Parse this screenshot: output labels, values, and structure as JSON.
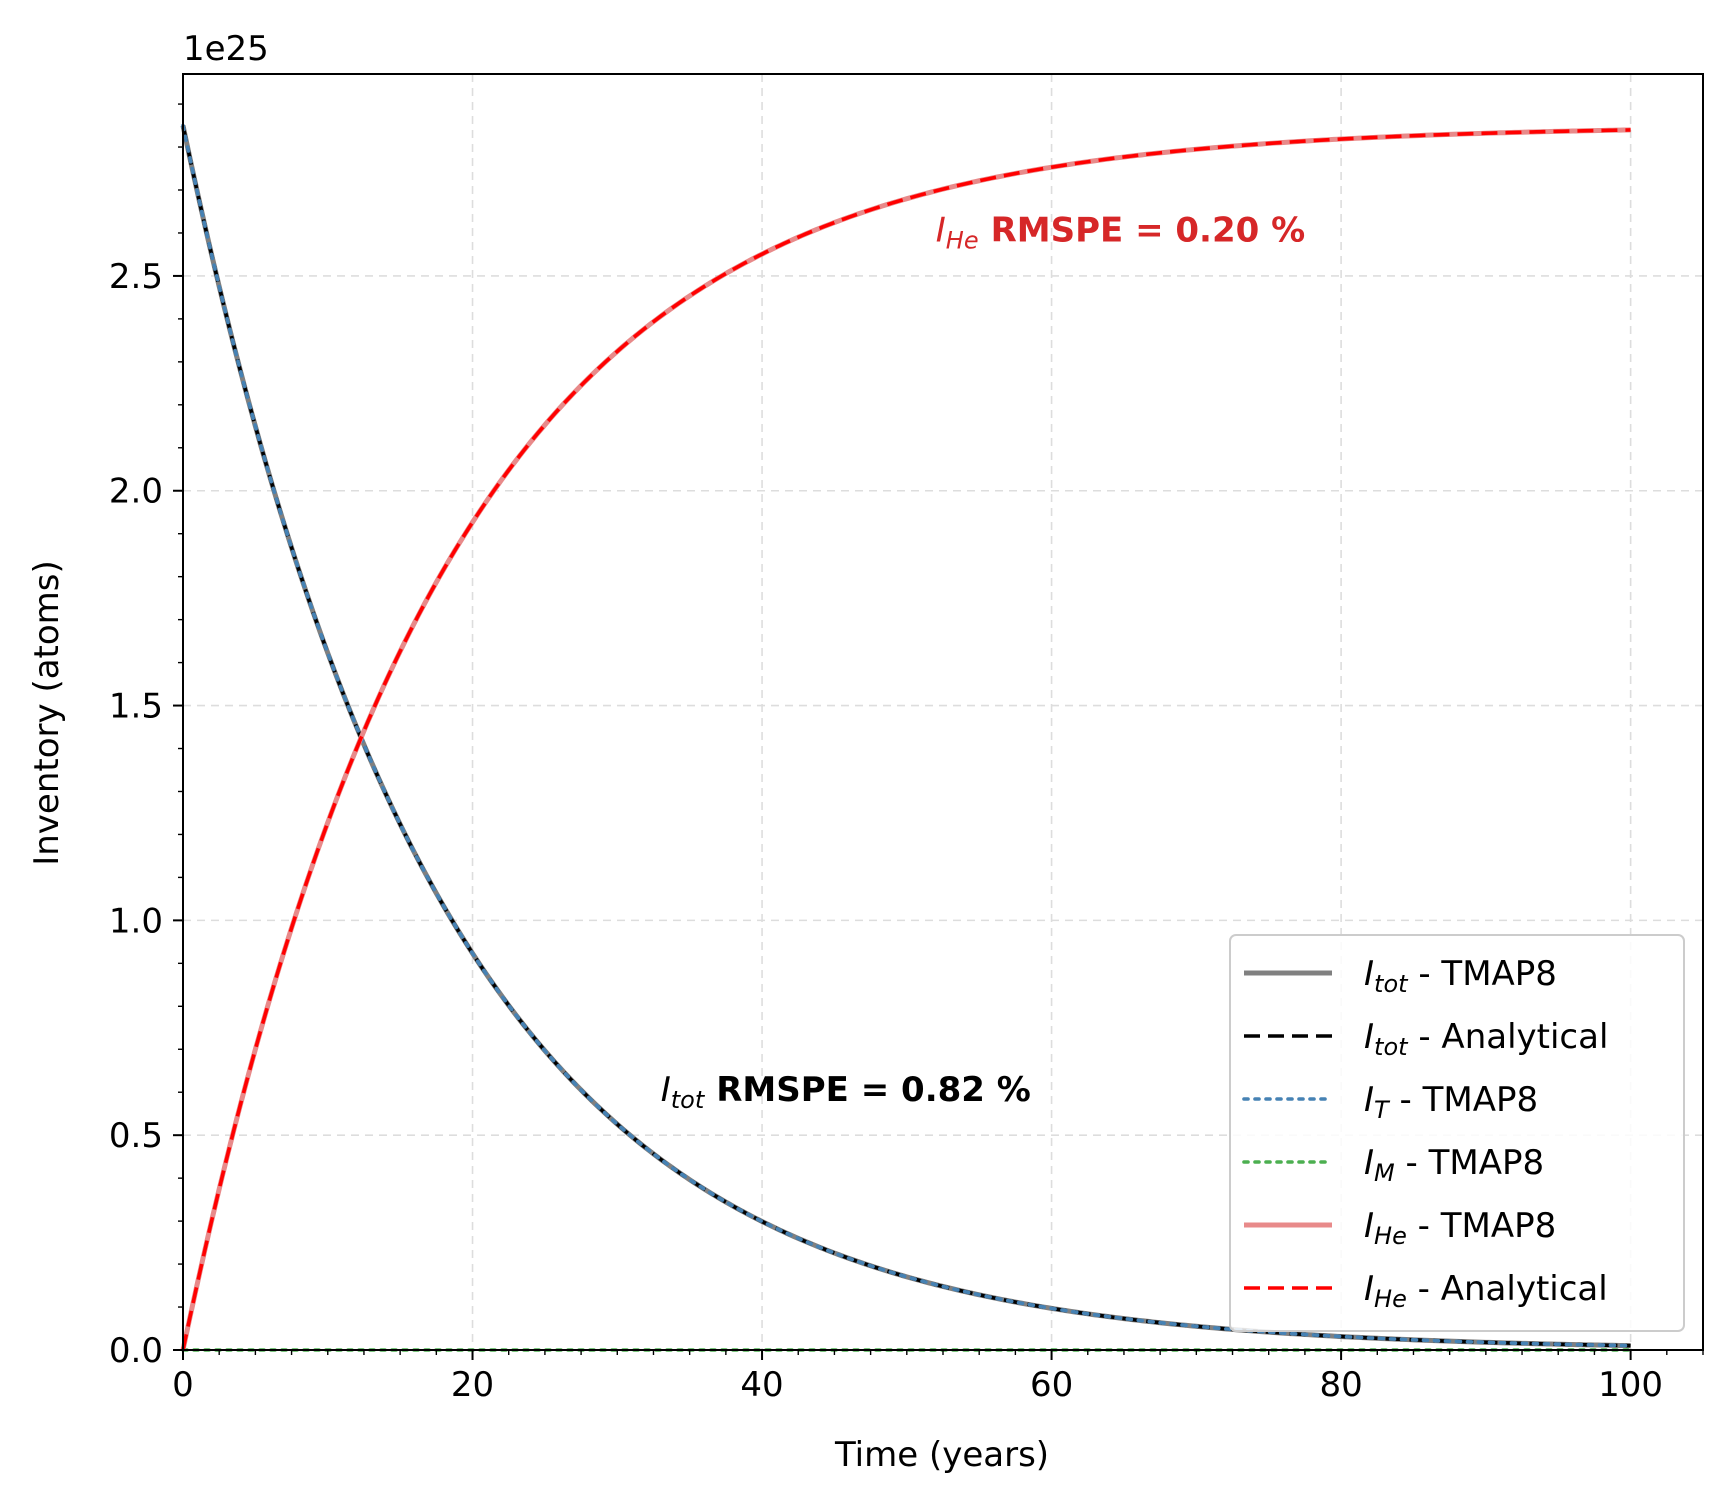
{
  "chart_data": {
    "type": "line",
    "offset_text": "1e25",
    "xlabel": "Time (years)",
    "ylabel": "Inventory (atoms)",
    "xlim": [
      0,
      105
    ],
    "ylim": [
      0,
      2.97
    ],
    "y_scale_factor": "1e25",
    "xticks": [
      "0",
      "20",
      "40",
      "60",
      "80",
      "100"
    ],
    "xtick_values": [
      0,
      20,
      40,
      60,
      80,
      100
    ],
    "yticks": [
      "0.0",
      "0.5",
      "1.0",
      "1.5",
      "2.0",
      "2.5"
    ],
    "ytick_values": [
      0,
      0.5,
      1.0,
      1.5,
      2.0,
      2.5
    ],
    "grid": true,
    "legend_position": "lower-right",
    "half_life_years": 12.3,
    "initial_inventory": 2.85,
    "series": [
      {
        "name": "tot",
        "suffix": " - TMAP8",
        "color": "#808080",
        "dash": "solid",
        "x": [
          0,
          5,
          10,
          15,
          20,
          25,
          30,
          40,
          50,
          60,
          70,
          80,
          90,
          100
        ],
        "y": [
          2.85,
          2.16,
          1.62,
          1.22,
          0.92,
          0.7,
          0.52,
          0.3,
          0.17,
          0.098,
          0.055,
          0.031,
          0.018,
          0.01
        ]
      },
      {
        "name": "tot",
        "suffix": " - Analytical",
        "color": "#000000",
        "dash": "dashed",
        "x": [
          0,
          5,
          10,
          15,
          20,
          25,
          30,
          40,
          50,
          60,
          70,
          80,
          90,
          100
        ],
        "y": [
          2.85,
          2.16,
          1.62,
          1.22,
          0.92,
          0.7,
          0.52,
          0.3,
          0.17,
          0.098,
          0.055,
          0.031,
          0.018,
          0.01
        ]
      },
      {
        "name": "T",
        "suffix": " - TMAP8",
        "color": "#4682b4",
        "dash": "dotted",
        "x": [
          0,
          5,
          10,
          15,
          20,
          25,
          30,
          40,
          50,
          60,
          70,
          80,
          90,
          100
        ],
        "y": [
          2.85,
          2.16,
          1.62,
          1.22,
          0.92,
          0.7,
          0.52,
          0.3,
          0.17,
          0.098,
          0.055,
          0.031,
          0.018,
          0.01
        ]
      },
      {
        "name": "M",
        "suffix": " - TMAP8",
        "color": "#4caf50",
        "dash": "dotted",
        "x": [
          0,
          100
        ],
        "y": [
          0,
          0
        ]
      },
      {
        "name": "He",
        "suffix": " - TMAP8",
        "color": "#e88a8a",
        "dash": "solid",
        "x": [
          0,
          5,
          10,
          15,
          20,
          25,
          30,
          40,
          50,
          60,
          70,
          80,
          90,
          100
        ],
        "y": [
          0,
          0.69,
          1.23,
          1.63,
          1.93,
          2.15,
          2.33,
          2.55,
          2.68,
          2.75,
          2.795,
          2.82,
          2.832,
          2.84
        ]
      },
      {
        "name": "He",
        "suffix": " - Analytical",
        "color": "#ff0000",
        "dash": "dashed",
        "x": [
          0,
          5,
          10,
          15,
          20,
          25,
          30,
          40,
          50,
          60,
          70,
          80,
          90,
          100
        ],
        "y": [
          0,
          0.69,
          1.23,
          1.63,
          1.93,
          2.15,
          2.33,
          2.55,
          2.68,
          2.75,
          2.795,
          2.82,
          2.832,
          2.84
        ]
      }
    ],
    "annotations": [
      {
        "sub": "He",
        "text": "RMSPE = 0.20 %",
        "color": "#d62728",
        "x": 52,
        "y": 2.58
      },
      {
        "sub": "tot",
        "text": "RMSPE = 0.82 %",
        "color": "#000000",
        "x": 33,
        "y": 0.58
      }
    ]
  }
}
